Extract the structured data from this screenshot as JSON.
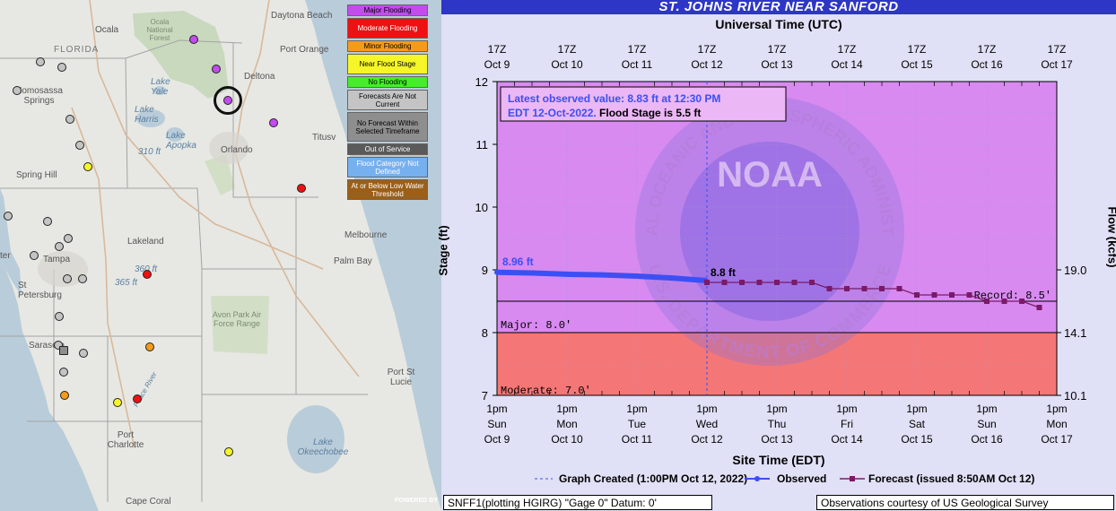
{
  "map": {
    "places": {
      "daytona_beach": "Daytona Beach",
      "port_orange": "Port Orange",
      "ocala": "Ocala",
      "ocala_forest": "Ocala National Forest",
      "florida": "FLORIDA",
      "deltona": "Deltona",
      "homosassa": "Homosassa Springs",
      "lake_yale": "Lake Yale",
      "lake_harris": "Lake Harris",
      "lake_apopka": "Lake Apopka",
      "ft310": "310 ft",
      "orlando": "Orlando",
      "titusville": "Titusv",
      "spring_hill": "Spring Hill",
      "lakeland": "Lakeland",
      "melbourne": "Melbourne",
      "tampa": "Tampa",
      "palm_bay": "Palm Bay",
      "st_petersburg": "St Petersburg",
      "ft365": "365 ft",
      "ft360": "360 ft",
      "avon_park": "Avon Park Air Force Range",
      "sarasota": "Sarasota",
      "port_st_lucie": "Port St Lucie",
      "port_charlotte": "Port Charlotte",
      "lake_okeechobee": "Lake Okeechobee",
      "cape_coral": "Cape Coral",
      "peace_river": "Peace River",
      "kb": "ter"
    },
    "legend": [
      {
        "label": "Major Flooding",
        "color": "#c34bf0",
        "text": "#000"
      },
      {
        "label": "Moderate Flooding",
        "color": "#ee1111",
        "text": "#fff"
      },
      {
        "label": "Minor Flooding",
        "color": "#f59b1b",
        "text": "#000"
      },
      {
        "label": "Near Flood Stage",
        "color": "#f5f528",
        "text": "#000"
      },
      {
        "label": "No Flooding",
        "color": "#44ee28",
        "text": "#000"
      },
      {
        "label": "Forecasts Are Not Current",
        "color": "#c4c4c4",
        "text": "#000"
      },
      {
        "label": "No Forecast Within Selected Timeframe",
        "color": "#8e8e8e",
        "text": "#000"
      },
      {
        "label": "Out of Service",
        "color": "#5a5a5a",
        "text": "#fff"
      },
      {
        "label": "Flood Category Not Defined",
        "color": "#76b0ef",
        "text": "#fff"
      },
      {
        "label": "At or Below Low Water Threshold",
        "color": "#9b5f18",
        "text": "#fff"
      }
    ],
    "esri": "POWERED BY"
  },
  "hydrograph": {
    "title": "ST. JOHNS RIVER NEAR SANFORD",
    "utc_title": "Universal Time (UTC)",
    "site_title": "Site Time (EDT)",
    "stage_axis_title": "Stage (ft)",
    "flow_axis_title": "Flow (kcfs)",
    "latest_line1": "Latest observed value: 8.83 ft at 12:30 PM",
    "latest_line2_a": "EDT 12-Oct-2022.",
    "latest_line2_b": "Flood Stage is 5.5 ft",
    "first_obs_label": "8.96 ft",
    "first_fcst_label": "8.8 ft",
    "record_label": "Record: 8.5'",
    "major_label": "Major: 8.0'",
    "moderate_label": "Moderate: 7.0'",
    "legend_created": "Graph Created (1:00PM Oct 12, 2022)",
    "legend_observed": "Observed",
    "legend_forecast": "Forecast (issued 8:50AM Oct 12)",
    "footer_left": "SNFF1(plotting HGIRG) \"Gage 0\" Datum: 0'",
    "footer_right": "Observations courtesy of US Geological Survey",
    "watermark_noaa": "NOAA",
    "watermark_top": "NATIONAL OCEANIC AND ATMOSPHERIC ADMINISTRATION",
    "watermark_bottom": "U.S. DEPARTMENT OF COMMERCE",
    "colors": {
      "major_zone": "#d88af0",
      "moderate_zone": "#f57676",
      "observed": "#3b4ff5",
      "forecast": "#7a1a68",
      "title_bar": "#2d36c6"
    }
  },
  "chart_data": {
    "type": "line",
    "title": "ST. JOHNS RIVER NEAR SANFORD",
    "xlabel": "Site Time (EDT)",
    "x2label": "Universal Time (UTC)",
    "ylabel": "Stage (ft)",
    "y2label": "Flow (kcfs)",
    "ylim": [
      7,
      12
    ],
    "yticks": [
      7,
      8,
      9,
      10,
      11,
      12
    ],
    "y2ticks": [
      {
        "stage": 7,
        "label": "10.1"
      },
      {
        "stage": 8,
        "label": "14.1"
      },
      {
        "stage": 9,
        "label": "19.0"
      }
    ],
    "x_ticks_top": [
      {
        "l1": "17Z",
        "l2": "Oct  9"
      },
      {
        "l1": "17Z",
        "l2": "Oct 10"
      },
      {
        "l1": "17Z",
        "l2": "Oct 11"
      },
      {
        "l1": "17Z",
        "l2": "Oct 12"
      },
      {
        "l1": "17Z",
        "l2": "Oct 13"
      },
      {
        "l1": "17Z",
        "l2": "Oct 14"
      },
      {
        "l1": "17Z",
        "l2": "Oct 15"
      },
      {
        "l1": "17Z",
        "l2": "Oct 16"
      },
      {
        "l1": "17Z",
        "l2": "Oct 17"
      }
    ],
    "x_ticks_bottom": [
      {
        "l1": "1pm",
        "l2": "Sun",
        "l3": "Oct 9"
      },
      {
        "l1": "1pm",
        "l2": "Mon",
        "l3": "Oct 10"
      },
      {
        "l1": "1pm",
        "l2": "Tue",
        "l3": "Oct 11"
      },
      {
        "l1": "1pm",
        "l2": "Wed",
        "l3": "Oct 12"
      },
      {
        "l1": "1pm",
        "l2": "Thu",
        "l3": "Oct 13"
      },
      {
        "l1": "1pm",
        "l2": "Fri",
        "l3": "Oct 14"
      },
      {
        "l1": "1pm",
        "l2": "Sat",
        "l3": "Oct 15"
      },
      {
        "l1": "1pm",
        "l2": "Sun",
        "l3": "Oct 16"
      },
      {
        "l1": "1pm",
        "l2": "Mon",
        "l3": "Oct 17"
      }
    ],
    "thresholds": {
      "record": 8.5,
      "major": 8.0,
      "moderate": 7.0,
      "flood": 5.5
    },
    "series": [
      {
        "name": "Observed",
        "x_days": [
          -3.0,
          -2.5,
          -2.0,
          -1.5,
          -1.0,
          -0.5,
          -0.02
        ],
        "values": [
          8.96,
          8.95,
          8.93,
          8.92,
          8.9,
          8.87,
          8.83
        ]
      },
      {
        "name": "Forecast",
        "x_days": [
          0.0,
          0.25,
          0.5,
          0.75,
          1.0,
          1.25,
          1.5,
          1.75,
          2.0,
          2.25,
          2.5,
          2.75,
          3.0,
          3.25,
          3.5,
          3.75,
          4.0,
          4.25,
          4.5,
          4.75
        ],
        "values": [
          8.8,
          8.8,
          8.8,
          8.8,
          8.8,
          8.8,
          8.8,
          8.7,
          8.7,
          8.7,
          8.7,
          8.7,
          8.6,
          8.6,
          8.6,
          8.6,
          8.5,
          8.5,
          8.5,
          8.4
        ]
      }
    ]
  }
}
